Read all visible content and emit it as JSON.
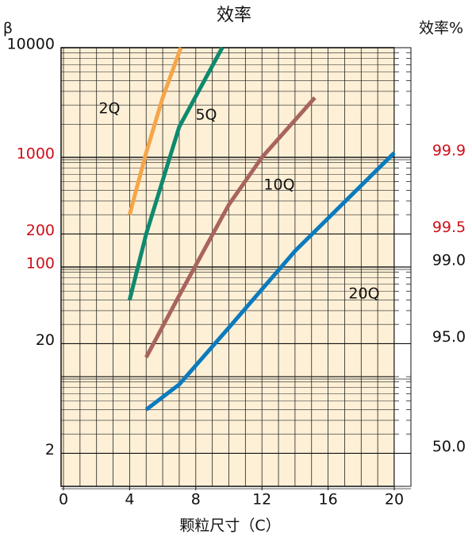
{
  "chart_data": {
    "type": "line",
    "title": "效率",
    "y_label": "β",
    "y2_label": "效率%",
    "x_label": "颗粒尺寸（C）",
    "log_y": true,
    "grid": true,
    "background": "#fdf0d6",
    "xlim": [
      0,
      20
    ],
    "xticks": [
      0,
      4,
      8,
      12,
      16,
      20
    ],
    "ylim": [
      1,
      10000
    ],
    "yticks": [
      {
        "value": 10000,
        "label": "10000",
        "color": "#111111"
      },
      {
        "value": 1000,
        "label": "1000",
        "color": "#d0101b"
      },
      {
        "value": 200,
        "label": "200",
        "color": "#d0101b"
      },
      {
        "value": 100,
        "label": "100",
        "color": "#d0101b"
      },
      {
        "value": 20,
        "label": "20",
        "color": "#111111"
      },
      {
        "value": 2,
        "label": "2",
        "color": "#111111"
      }
    ],
    "y2ticks": [
      {
        "value": 99.9,
        "label": "99.9",
        "color": "#d0101b"
      },
      {
        "value": 99.5,
        "label": "99.5",
        "color": "#d0101b"
      },
      {
        "value": 99.0,
        "label": "99.0",
        "color": "#111111"
      },
      {
        "value": 95.0,
        "label": "95.0",
        "color": "#111111"
      },
      {
        "value": 50.0,
        "label": "50.0",
        "color": "#111111"
      }
    ],
    "series": [
      {
        "name": "2Q",
        "color": "#f5a54a",
        "x": [
          4,
          5,
          6,
          7.1
        ],
        "values": [
          300,
          1100,
          3500,
          10000
        ]
      },
      {
        "name": "5Q",
        "color": "#0e8a6e",
        "x": [
          4,
          5,
          7,
          9.6
        ],
        "values": [
          50,
          200,
          1900,
          10000
        ]
      },
      {
        "name": "10Q",
        "color": "#a9645e",
        "x": [
          5,
          7,
          10,
          12,
          15.2
        ],
        "values": [
          15,
          55,
          370,
          1000,
          3500
        ]
      },
      {
        "name": "20Q",
        "color": "#0b7bbd",
        "x": [
          5,
          7,
          10,
          14,
          20
        ],
        "values": [
          5,
          8.5,
          28,
          140,
          1100
        ]
      }
    ]
  }
}
